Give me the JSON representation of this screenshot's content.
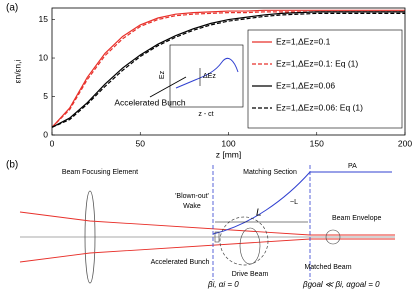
{
  "panel_labels": [
    "(a)",
    "(b)"
  ],
  "chart_data": {
    "type": "line",
    "xlabel": "z [mm]",
    "ylabel": "εn/εn,i",
    "x": [
      0,
      10,
      20,
      30,
      40,
      50,
      60,
      70,
      80,
      90,
      100,
      110,
      120,
      130,
      140,
      150,
      160,
      170,
      180,
      190,
      200
    ],
    "series": [
      {
        "name": "Ez=1,ΔEz=0.1",
        "color": "#e8302a",
        "linestyle": "solid",
        "values": [
          1,
          3.5,
          7.5,
          10.6,
          12.8,
          14.3,
          15.2,
          15.7,
          15.9,
          16.0,
          16.1,
          16.1,
          16.2,
          16.2,
          16.2,
          16.2,
          16.2,
          16.2,
          16.2,
          16.2,
          16.2
        ]
      },
      {
        "name": "Ez=1,ΔEz=0.1: Eq (1)",
        "color": "#e8302a",
        "linestyle": "dashed",
        "values": [
          1,
          3.3,
          7.2,
          10.3,
          12.5,
          14.1,
          15.0,
          15.5,
          15.7,
          15.8,
          15.9,
          15.9,
          16.0,
          16.0,
          16.0,
          16.0,
          16.0,
          16.0,
          16.0,
          16.0,
          16.0
        ]
      },
      {
        "name": "Ez=1,ΔEz=0.06",
        "color": "#000000",
        "linestyle": "solid",
        "values": [
          1,
          2.2,
          4.2,
          6.6,
          8.7,
          10.4,
          11.8,
          12.9,
          13.8,
          14.5,
          15.0,
          15.3,
          15.6,
          15.8,
          15.9,
          16.0,
          16.0,
          16.0,
          16.0,
          16.0,
          16.0
        ]
      },
      {
        "name": "Ez=1,ΔEz=0.06: Eq (1)",
        "color": "#000000",
        "linestyle": "dashed",
        "values": [
          1,
          2.0,
          4.0,
          6.3,
          8.4,
          10.2,
          11.6,
          12.7,
          13.6,
          14.3,
          14.8,
          15.1,
          15.4,
          15.6,
          15.7,
          15.8,
          15.8,
          15.8,
          15.8,
          15.8,
          15.8
        ]
      }
    ],
    "xlim": [
      0,
      200
    ],
    "xticks": [
      0,
      50,
      100,
      150,
      200
    ],
    "ylim": [
      0,
      16.5
    ],
    "yticks": [
      0,
      5,
      10,
      15
    ],
    "legend": "right",
    "annotations": [
      "Accelerated Bunch",
      "Ez",
      "ΔEz",
      "z - ct"
    ]
  },
  "diagram": {
    "labels": [
      "Beam Focusing Element",
      "Matching Section",
      "PA",
      "'Blown-out'",
      "Wake",
      "L",
      "~L",
      "Beam Envelope",
      "Accelerated Bunch",
      "Drive Beam",
      "Matched Beam",
      "βi, αi = 0",
      "βgoal ≪ βi, αgoal = 0"
    ]
  }
}
